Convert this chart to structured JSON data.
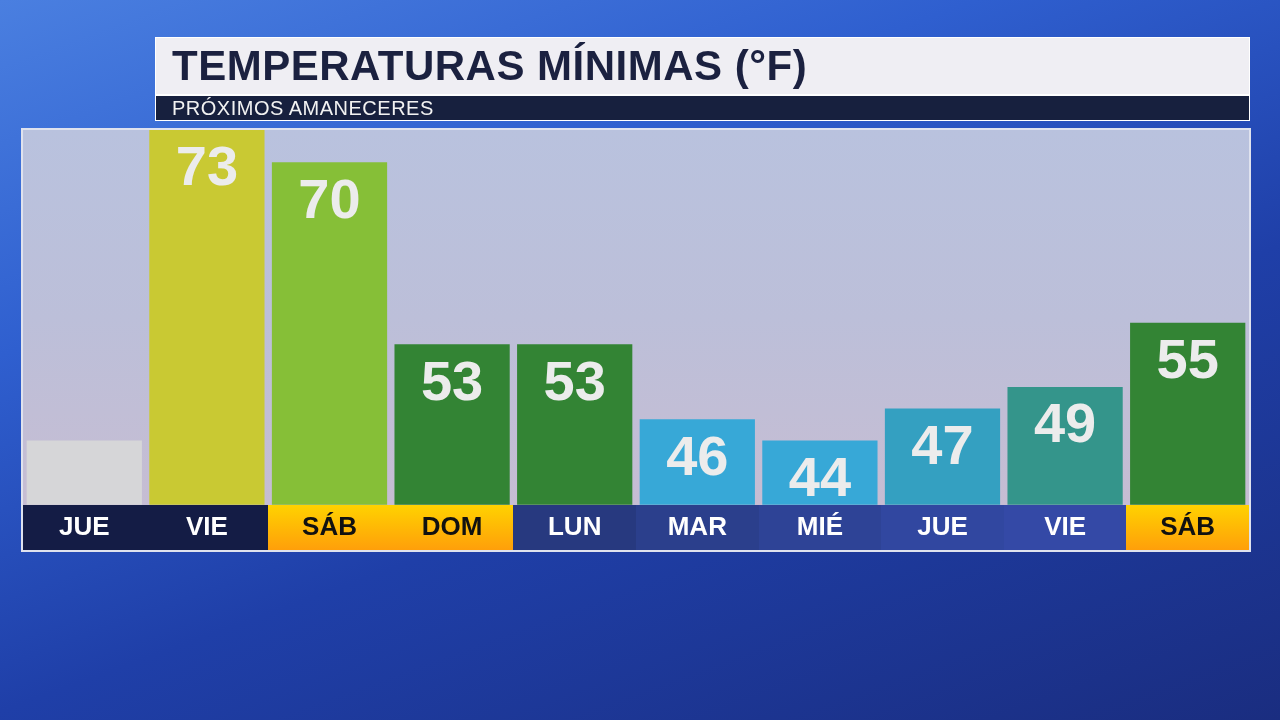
{
  "chart_data": {
    "type": "bar",
    "title": "TEMPERATURAS MÍNIMAS (°F)",
    "subtitle": "PRÓXIMOS AMANECERES",
    "categories": [
      "JUE",
      "VIE",
      "SÁB",
      "DOM",
      "LUN",
      "MAR",
      "MIÉ",
      "JUE",
      "VIE",
      "SÁB"
    ],
    "values": [
      44,
      73,
      70,
      53,
      53,
      46,
      44,
      47,
      49,
      55
    ],
    "colors": [
      "#d6d6d8",
      "#c9c933",
      "#86bf37",
      "#338434",
      "#338434",
      "#37a8d7",
      "#37a8d7",
      "#34a0c1",
      "#34958b",
      "#338434"
    ],
    "value_labels": [
      null,
      "73",
      "70",
      "53",
      "53",
      "46",
      "44",
      "47",
      "49",
      "55"
    ],
    "ylim": [
      38,
      73
    ],
    "tick_labels": "x"
  }
}
